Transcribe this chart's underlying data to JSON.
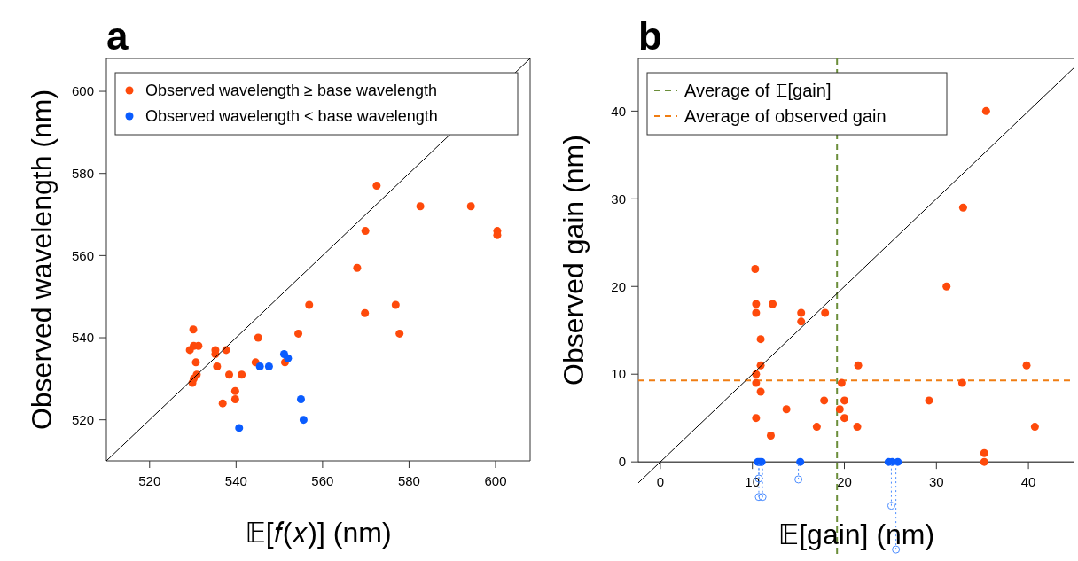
{
  "chart_data": [
    {
      "type": "scatter",
      "title": "a",
      "xlabel": "𝔼[𝑓(𝑥)] (nm)",
      "ylabel": "Observed wavelength (nm)",
      "xlim": [
        510,
        608
      ],
      "ylim": [
        510,
        608
      ],
      "xticks": [
        520,
        540,
        560,
        580,
        600
      ],
      "yticks": [
        520,
        540,
        560,
        580,
        600
      ],
      "legend": "top left",
      "grid": false,
      "series": [
        {
          "name": "Observed wavelength ≥ base wavelength",
          "color": "#fe4a0b",
          "x": [
            530.1,
            530.2,
            531.3,
            529.3,
            530.7,
            530.9,
            530.2,
            529.9,
            535.2,
            535.2,
            537.7,
            535.6,
            545.1,
            544.5,
            538.4,
            541.3,
            539.8,
            539.8,
            536.9,
            551.3,
            554.4,
            556.9,
            568,
            572.5,
            582.6,
            594.3,
            569.9,
            600.4,
            600.4,
            576.9,
            569.8,
            577.8
          ],
          "values": [
            542,
            538,
            538,
            537,
            534,
            531,
            530,
            529,
            537,
            536,
            537,
            533,
            540,
            534,
            531,
            531,
            527,
            525,
            524,
            534,
            541,
            548,
            557,
            577,
            572,
            572,
            566,
            566,
            565,
            548,
            546,
            541
          ]
        },
        {
          "name": "Observed wavelength < base wavelength",
          "color": "#0a5cff",
          "x": [
            545.5,
            547.6,
            551.1,
            552.0,
            555.0,
            555.6,
            540.7
          ],
          "values": [
            533,
            533,
            536,
            535,
            525,
            520,
            518
          ]
        },
        {
          "type": "line",
          "color": "#000000",
          "x": [
            510,
            608
          ],
          "values": [
            510,
            608
          ]
        }
      ]
    },
    {
      "type": "scatter",
      "title": "b",
      "xlabel": "𝔼[gain] (nm)",
      "ylabel": "Observed gain (nm)",
      "xlim": [
        -2.4,
        45
      ],
      "ylim": [
        -11,
        46
      ],
      "xticks": [
        0,
        10,
        20,
        30,
        40
      ],
      "yticks": [
        0,
        10,
        20,
        30,
        40
      ],
      "legend": "top left",
      "grid": false,
      "series": [
        {
          "color": "#fe4a0b",
          "x": [
            10.3,
            10.4,
            12.2,
            10.4,
            15.3,
            17.9,
            15.3,
            10.9,
            10.9,
            10.4,
            10.4,
            10.9,
            19.7,
            21.5,
            17.8,
            20.0,
            13.7,
            19.5,
            20.0,
            10.4,
            17.0,
            21.4,
            12.0,
            35.4,
            32.9,
            31.1,
            39.8,
            32.8,
            29.2,
            40.7,
            35.2,
            35.2
          ],
          "values": [
            22,
            18,
            18,
            17,
            17,
            17,
            16,
            14,
            11,
            10,
            9,
            8,
            9,
            11,
            7,
            7,
            6,
            6,
            5,
            5,
            4,
            4,
            3,
            40,
            29,
            20,
            11,
            9,
            7,
            4,
            1,
            0
          ]
        },
        {
          "color": "#0a5cff",
          "x": [
            10.6,
            10.8,
            11.0,
            15.2,
            24.8,
            25.2,
            25.8
          ],
          "values": [
            0,
            0,
            0,
            0,
            0,
            0,
            0
          ]
        },
        {
          "color": "#4a8cff",
          "marker": "circle",
          "line_style": "dotted",
          "x": [
            10.7,
            10.7,
            11.1,
            15.0,
            25.1,
            25.6
          ],
          "values": [
            -1.9,
            -4,
            -4,
            -2,
            -5,
            -10
          ],
          "errors": [
            [
              -1.9,
              0
            ],
            [
              -4,
              0
            ],
            [
              -4,
              0
            ],
            [
              -2,
              0
            ],
            [
              -5,
              0
            ],
            [
              -10,
              0
            ]
          ]
        },
        {
          "type": "line",
          "color": "#000000",
          "x": [
            -2.4,
            45
          ],
          "values": [
            -2.4,
            45
          ]
        }
      ],
      "ref_lines": [
        {
          "axis": "x",
          "value": 19.2,
          "label": "Average of 𝔼[gain]",
          "color": "#6b8e3a",
          "line_style": "dashed"
        },
        {
          "axis": "y",
          "value": 9.3,
          "label": "Average of observed gain",
          "color": "#f07d12",
          "line_style": "dashed"
        }
      ]
    }
  ]
}
